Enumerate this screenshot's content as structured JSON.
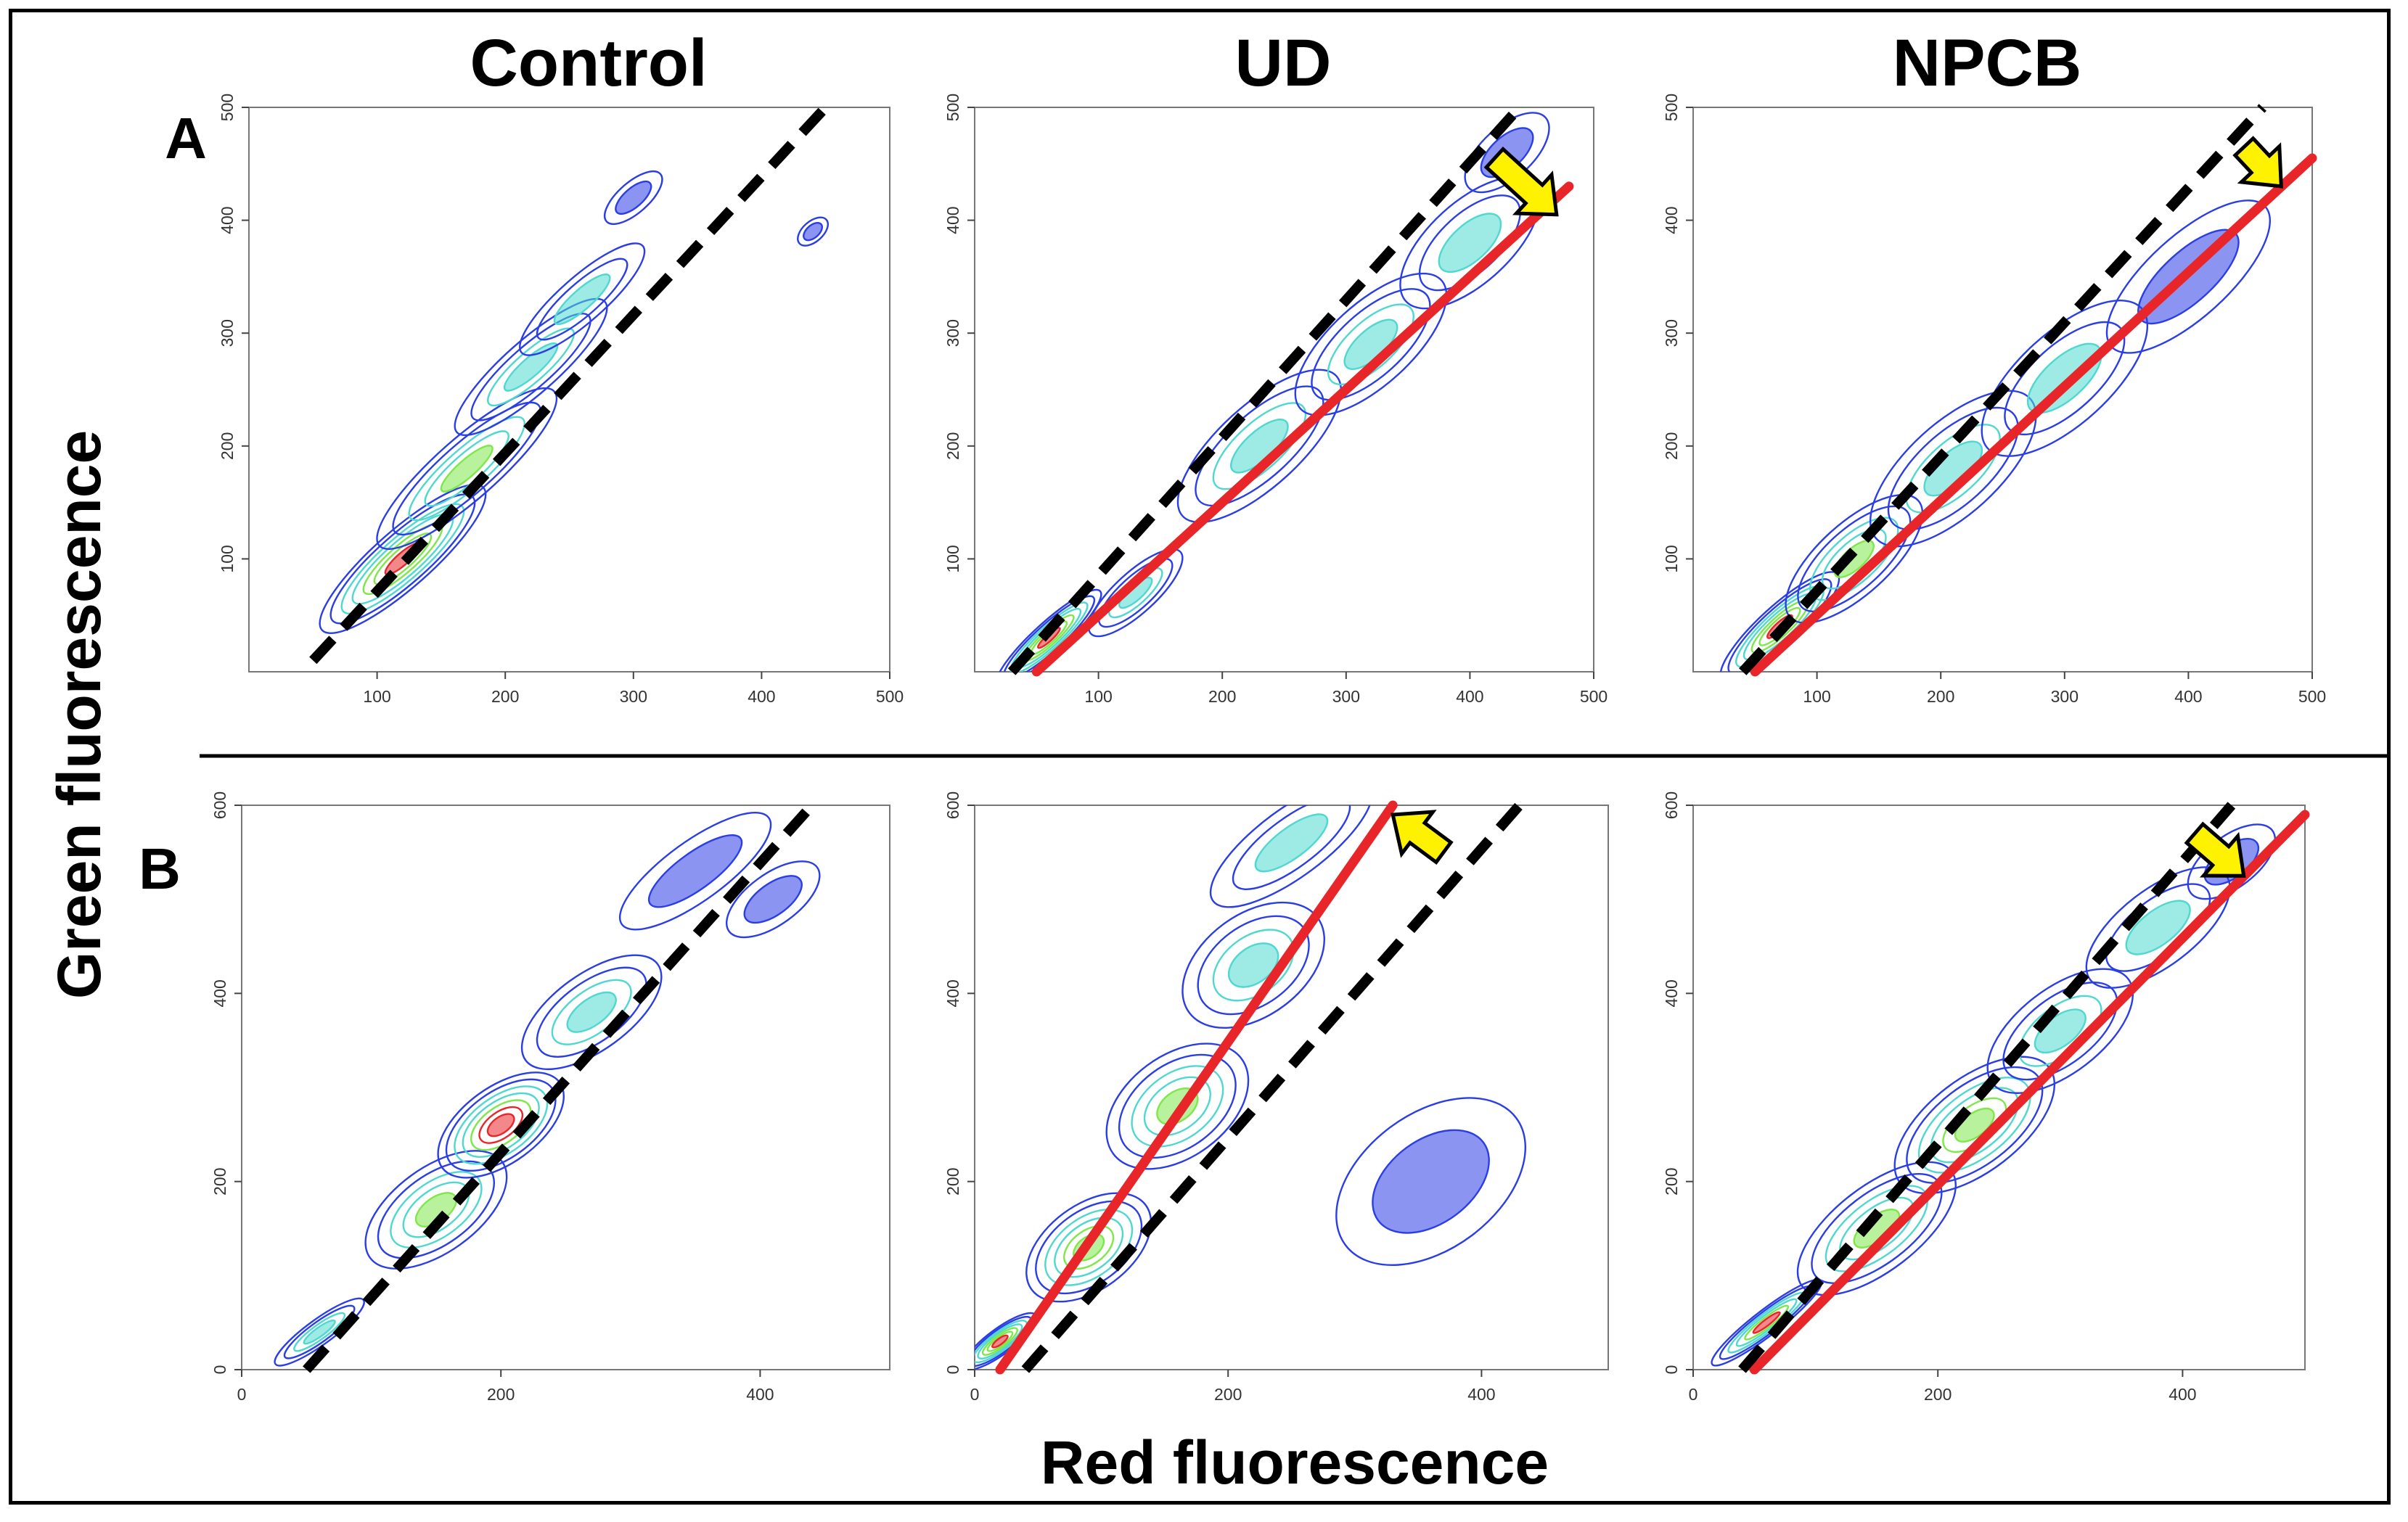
{
  "figure": {
    "columns": [
      "Control",
      "UD",
      "NPCB"
    ],
    "rows": [
      "A",
      "B"
    ],
    "xlabel": "Red fluorescence",
    "ylabel": "Green fluorescence",
    "colors": {
      "reference_line": "#000000",
      "shifted_line": "#e8262a",
      "arrow": "#fff200",
      "contour_low": "#2b3ee6",
      "contour_mid": "#4fd8d0",
      "contour_high": "#7ee84a",
      "contour_peak": "#e8262a"
    }
  },
  "chart_data": [
    {
      "panel": "A-Control",
      "type": "scatter",
      "xlim": [
        0,
        500
      ],
      "ylim": [
        0,
        500
      ],
      "xticks": [
        "100",
        "200",
        "300",
        "400",
        "500"
      ],
      "yticks": [
        "100",
        "200",
        "300",
        "400",
        "500"
      ],
      "black_line": [
        [
          50,
          10
        ],
        [
          450,
          500
        ]
      ],
      "red_line": null,
      "arrow": null,
      "density": [
        [
          120,
          100,
          60,
          28,
          0.95
        ],
        [
          170,
          180,
          65,
          30,
          0.75
        ],
        [
          220,
          270,
          55,
          26,
          0.55
        ],
        [
          260,
          330,
          45,
          22,
          0.4
        ],
        [
          300,
          420,
          20,
          15,
          0.3
        ],
        [
          440,
          390,
          10,
          10,
          0.25
        ]
      ]
    },
    {
      "panel": "A-UD",
      "type": "scatter",
      "xlim": [
        0,
        500
      ],
      "ylim": [
        0,
        500
      ],
      "xticks": [
        "100",
        "200",
        "300",
        "400",
        "500"
      ],
      "yticks": [
        "100",
        "200",
        "300",
        "400",
        "500"
      ],
      "black_line": [
        [
          30,
          0
        ],
        [
          440,
          500
        ]
      ],
      "red_line": [
        [
          50,
          0
        ],
        [
          480,
          430
        ]
      ],
      "arrow": {
        "from": [
          420,
          455
        ],
        "to": [
          470,
          405
        ],
        "direction": "down-right"
      },
      "density": [
        [
          60,
          30,
          40,
          15,
          0.95
        ],
        [
          130,
          70,
          35,
          20,
          0.6
        ],
        [
          230,
          200,
          60,
          40,
          0.55
        ],
        [
          320,
          290,
          55,
          40,
          0.6
        ],
        [
          400,
          380,
          50,
          40,
          0.4
        ],
        [
          430,
          460,
          30,
          25,
          0.25
        ]
      ]
    },
    {
      "panel": "A-NPCB",
      "type": "scatter",
      "xlim": [
        0,
        500
      ],
      "ylim": [
        0,
        500
      ],
      "xticks": [
        "100",
        "200",
        "300",
        "400",
        "500"
      ],
      "yticks": [
        "100",
        "200",
        "300",
        "400",
        "500"
      ],
      "black_line": [
        [
          40,
          0
        ],
        [
          460,
          500
        ]
      ],
      "red_line": [
        [
          50,
          0
        ],
        [
          500,
          455
        ]
      ],
      "arrow": {
        "from": [
          445,
          465
        ],
        "to": [
          475,
          430
        ],
        "direction": "down-right"
      },
      "density": [
        [
          70,
          40,
          45,
          20,
          0.95
        ],
        [
          130,
          100,
          50,
          35,
          0.75
        ],
        [
          210,
          180,
          60,
          45,
          0.6
        ],
        [
          300,
          260,
          60,
          45,
          0.45
        ],
        [
          400,
          350,
          60,
          40,
          0.3
        ]
      ]
    },
    {
      "panel": "B-Control",
      "type": "scatter",
      "xlim": [
        0,
        500
      ],
      "ylim": [
        0,
        600
      ],
      "xticks": [
        "0",
        "200",
        "400"
      ],
      "yticks": [
        "0",
        "200",
        "400",
        "600"
      ],
      "black_line": [
        [
          50,
          0
        ],
        [
          440,
          600
        ]
      ],
      "red_line": null,
      "arrow": null,
      "density": [
        [
          60,
          40,
          30,
          15,
          0.6
        ],
        [
          150,
          170,
          45,
          50,
          0.75
        ],
        [
          200,
          260,
          40,
          45,
          1.0
        ],
        [
          270,
          380,
          45,
          45,
          0.5
        ],
        [
          350,
          530,
          50,
          35,
          0.35
        ],
        [
          410,
          500,
          30,
          30,
          0.25
        ]
      ]
    },
    {
      "panel": "B-UD",
      "type": "scatter",
      "xlim": [
        0,
        500
      ],
      "ylim": [
        0,
        600
      ],
      "xticks": [
        "0",
        "200",
        "400"
      ],
      "yticks": [
        "0",
        "200",
        "400",
        "600"
      ],
      "black_line": [
        [
          40,
          0
        ],
        [
          430,
          600
        ]
      ],
      "red_line": [
        [
          20,
          0
        ],
        [
          330,
          600
        ]
      ],
      "arrow": {
        "from": [
          370,
          550
        ],
        "to": [
          330,
          590
        ],
        "direction": "up-left"
      },
      "density": [
        [
          20,
          30,
          25,
          15,
          0.95
        ],
        [
          90,
          130,
          40,
          50,
          0.8
        ],
        [
          160,
          280,
          45,
          60,
          0.65
        ],
        [
          220,
          430,
          45,
          60,
          0.5
        ],
        [
          250,
          560,
          55,
          40,
          0.45
        ],
        [
          360,
          200,
          60,
          80,
          0.2
        ]
      ]
    },
    {
      "panel": "B-NPCB",
      "type": "scatter",
      "xlim": [
        0,
        500
      ],
      "ylim": [
        0,
        600
      ],
      "xticks": [
        "0",
        "200",
        "400"
      ],
      "yticks": [
        "0",
        "200",
        "400",
        "600"
      ],
      "black_line": [
        [
          40,
          0
        ],
        [
          440,
          600
        ]
      ],
      "red_line": [
        [
          50,
          0
        ],
        [
          500,
          590
        ]
      ],
      "arrow": {
        "from": [
          410,
          570
        ],
        "to": [
          450,
          525
        ],
        "direction": "down-right"
      },
      "density": [
        [
          60,
          50,
          40,
          15,
          0.9
        ],
        [
          150,
          150,
          55,
          50,
          0.75
        ],
        [
          230,
          260,
          55,
          55,
          0.8
        ],
        [
          300,
          360,
          50,
          50,
          0.5
        ],
        [
          380,
          470,
          50,
          45,
          0.4
        ],
        [
          440,
          540,
          30,
          30,
          0.3
        ]
      ]
    }
  ]
}
